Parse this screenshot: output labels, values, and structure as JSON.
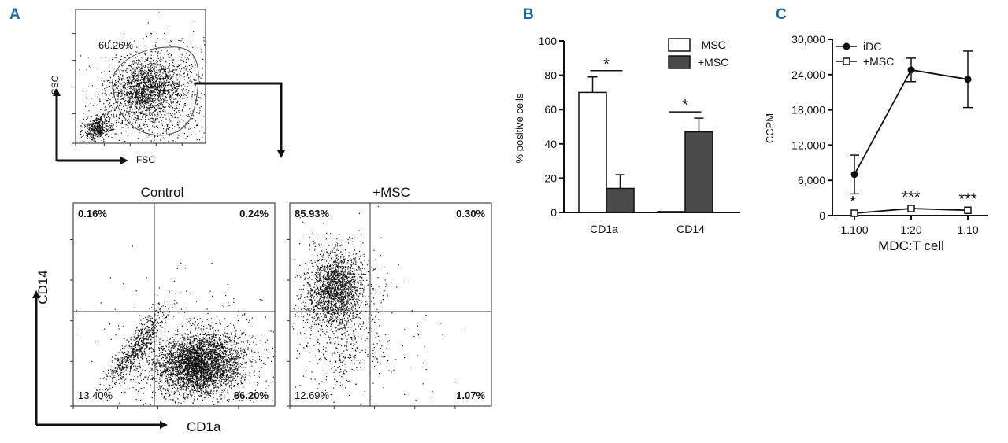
{
  "panel_letters": {
    "a": "A",
    "b": "B",
    "c": "C"
  },
  "colors": {
    "accent": "#1a6aa5",
    "ink": "#111111",
    "bar_dark": "#4a4a4a",
    "bar_light": "#ffffff"
  },
  "panel_a": {
    "scatter_gate_percent": "60.26%",
    "scatter_y_label": "SSC",
    "scatter_x_label": "FSC",
    "control_title": "Control",
    "msc_title": "+MSC",
    "y_axis_label": "CD14",
    "x_axis_label": "CD1a",
    "control_quadrants": {
      "ul": "0.16%",
      "ur": "0.24%",
      "ll": "13.40%",
      "lr": "86.20%"
    },
    "msc_quadrants": {
      "ul": "85.93%",
      "ur": "0.30%",
      "ll": "12.69%",
      "lr": "1.07%"
    }
  },
  "chart_data": [
    {
      "type": "bar",
      "panel": "B",
      "title": "",
      "xlabel": "",
      "ylabel": "% positive cells",
      "ylim": [
        0,
        100
      ],
      "yticks": [
        "0",
        "20",
        "40",
        "60",
        "80",
        "100"
      ],
      "categories": [
        "CD1a",
        "CD14"
      ],
      "series": [
        {
          "name": "-MSC",
          "values": [
            70,
            0.5
          ],
          "errors": [
            9,
            0
          ]
        },
        {
          "name": "+MSC",
          "values": [
            14,
            47
          ],
          "errors": [
            8,
            8
          ]
        }
      ],
      "significance": [
        "*",
        "*"
      ],
      "legend": "top-right"
    },
    {
      "type": "line",
      "panel": "C",
      "title": "",
      "xlabel": "MDC:T cell",
      "ylabel": "CCPM",
      "ylim": [
        0,
        30000
      ],
      "yticks": [
        "0",
        "6,000",
        "12,000",
        "18,000",
        "24,000",
        "30,000"
      ],
      "categories": [
        "1.100",
        "1:20",
        "1.10"
      ],
      "series": [
        {
          "name": "iDC",
          "values": [
            7000,
            24800,
            23200
          ],
          "errors": [
            3300,
            2000,
            4800
          ]
        },
        {
          "name": "+MSC",
          "values": [
            400,
            1200,
            900
          ],
          "errors": [
            0,
            0,
            0
          ]
        }
      ],
      "significance": [
        "*",
        "***",
        "***"
      ],
      "legend": "top-left"
    }
  ]
}
